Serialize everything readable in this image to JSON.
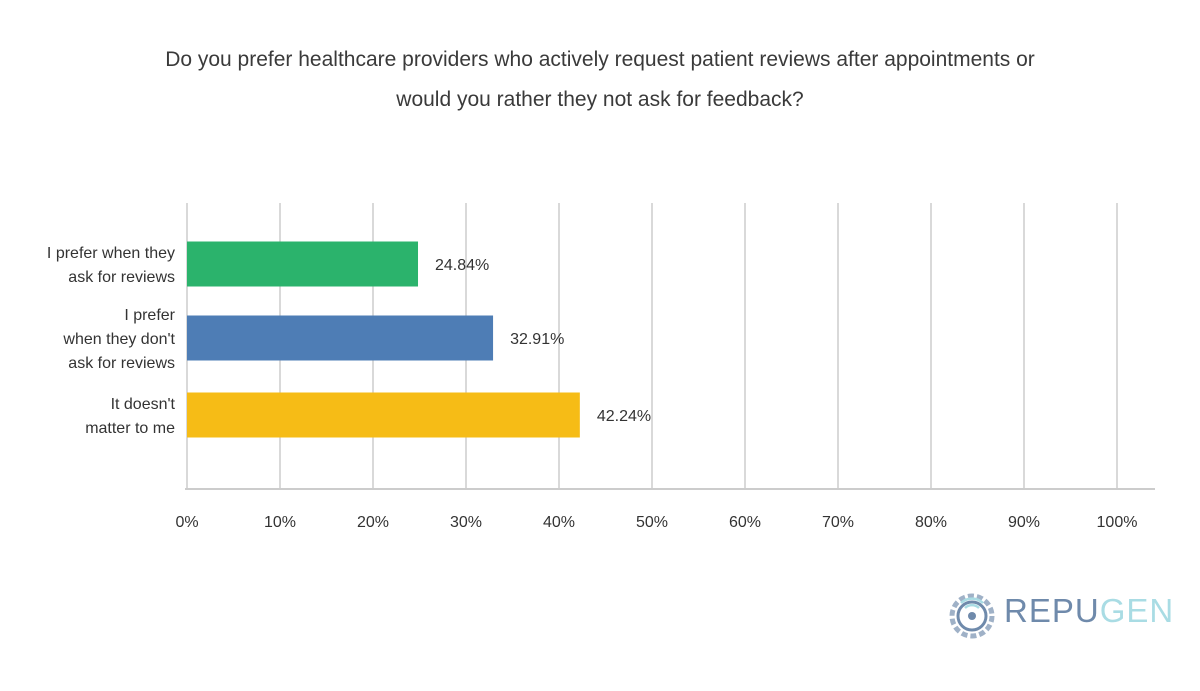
{
  "title_lines": [
    "Do you prefer healthcare providers who actively request patient reviews after appointments or",
    "would you rather they not ask for feedback?"
  ],
  "chart_data": {
    "type": "bar",
    "orientation": "horizontal",
    "title": "Do you prefer healthcare providers who actively request patient reviews after appointments or would you rather they not ask for feedback?",
    "categories": [
      [
        "I prefer when they",
        "ask for reviews"
      ],
      [
        "I prefer",
        "when they don't",
        "ask for reviews"
      ],
      [
        "It doesn't",
        "matter to me"
      ]
    ],
    "values": [
      24.84,
      32.91,
      42.24
    ],
    "value_labels": [
      "24.84%",
      "32.91%",
      "42.24%"
    ],
    "colors": [
      "#2bb36c",
      "#4e7db5",
      "#f6bc16"
    ],
    "xlim": [
      0,
      100
    ],
    "x_ticks": [
      "0%",
      "10%",
      "20%",
      "30%",
      "40%",
      "50%",
      "60%",
      "70%",
      "80%",
      "90%",
      "100%"
    ],
    "grid": true,
    "grid_color": "#d9d9d9"
  },
  "logo": {
    "part1": "REPU",
    "part2": "GEN",
    "color1": "#6f8aab",
    "color2": "#a9dce4"
  }
}
